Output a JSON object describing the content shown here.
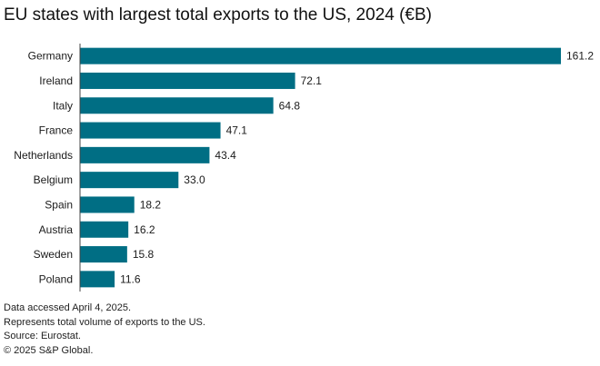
{
  "chart_data": {
    "type": "bar",
    "orientation": "horizontal",
    "title": "EU states with largest total exports to the US, 2024 (€B)",
    "categories": [
      "Germany",
      "Ireland",
      "Italy",
      "France",
      "Netherlands",
      "Belgium",
      "Spain",
      "Austria",
      "Sweden",
      "Poland"
    ],
    "values": [
      161.2,
      72.1,
      64.8,
      47.1,
      43.4,
      33.0,
      18.2,
      16.2,
      15.8,
      11.6
    ],
    "value_labels": [
      "161.2",
      "72.1",
      "64.8",
      "47.1",
      "43.4",
      "33.0",
      "18.2",
      "16.2",
      "15.8",
      "11.6"
    ],
    "xlim": [
      0,
      161.2
    ],
    "bar_color": "#006e84",
    "grid": false,
    "legend": "none"
  },
  "footnotes": [
    "Data accessed April 4, 2025.",
    "Represents total volume of exports to the US.",
    "Source: Eurostat.",
    "© 2025 S&P Global."
  ]
}
